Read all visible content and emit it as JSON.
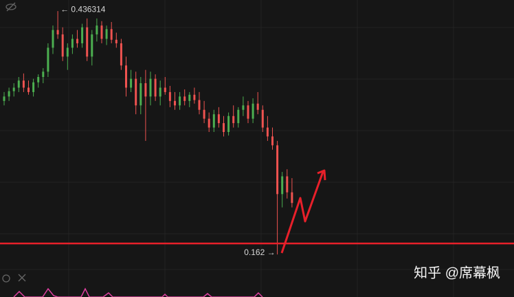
{
  "chart_data": {
    "type": "candlestick",
    "up_color": "#4caf50",
    "down_color": "#ef5350",
    "ylim": [
      0.114,
      0.4488
    ],
    "candles": [
      [
        0.335,
        0.345,
        0.33,
        0.34
      ],
      [
        0.34,
        0.35,
        0.335,
        0.346
      ],
      [
        0.346,
        0.355,
        0.34,
        0.35
      ],
      [
        0.35,
        0.362,
        0.345,
        0.358
      ],
      [
        0.358,
        0.366,
        0.345,
        0.35
      ],
      [
        0.35,
        0.358,
        0.342,
        0.345
      ],
      [
        0.345,
        0.36,
        0.34,
        0.356
      ],
      [
        0.356,
        0.365,
        0.35,
        0.362
      ],
      [
        0.362,
        0.372,
        0.355,
        0.368
      ],
      [
        0.368,
        0.4,
        0.362,
        0.395
      ],
      [
        0.395,
        0.42,
        0.388,
        0.415
      ],
      [
        0.415,
        0.436314,
        0.405,
        0.41
      ],
      [
        0.41,
        0.418,
        0.38,
        0.385
      ],
      [
        0.385,
        0.4,
        0.37,
        0.395
      ],
      [
        0.395,
        0.41,
        0.388,
        0.405
      ],
      [
        0.405,
        0.415,
        0.395,
        0.4
      ],
      [
        0.4,
        0.422,
        0.395,
        0.418
      ],
      [
        0.418,
        0.428,
        0.38,
        0.385
      ],
      [
        0.385,
        0.415,
        0.375,
        0.41
      ],
      [
        0.41,
        0.428,
        0.402,
        0.42
      ],
      [
        0.42,
        0.425,
        0.4,
        0.405
      ],
      [
        0.405,
        0.42,
        0.398,
        0.416
      ],
      [
        0.416,
        0.424,
        0.4,
        0.404
      ],
      [
        0.404,
        0.412,
        0.395,
        0.4
      ],
      [
        0.4,
        0.405,
        0.37,
        0.375
      ],
      [
        0.375,
        0.385,
        0.34,
        0.35
      ],
      [
        0.35,
        0.37,
        0.345,
        0.36
      ],
      [
        0.36,
        0.368,
        0.32,
        0.33
      ],
      [
        0.33,
        0.362,
        0.32,
        0.355
      ],
      [
        0.355,
        0.37,
        0.29,
        0.34
      ],
      [
        0.34,
        0.368,
        0.33,
        0.36
      ],
      [
        0.36,
        0.365,
        0.335,
        0.34
      ],
      [
        0.34,
        0.358,
        0.33,
        0.35
      ],
      [
        0.35,
        0.362,
        0.342,
        0.345
      ],
      [
        0.345,
        0.352,
        0.328,
        0.335
      ],
      [
        0.335,
        0.345,
        0.325,
        0.33
      ],
      [
        0.33,
        0.345,
        0.325,
        0.34
      ],
      [
        0.34,
        0.348,
        0.33,
        0.335
      ],
      [
        0.335,
        0.345,
        0.328,
        0.342
      ],
      [
        0.342,
        0.35,
        0.332,
        0.336
      ],
      [
        0.336,
        0.345,
        0.32,
        0.325
      ],
      [
        0.325,
        0.335,
        0.31,
        0.315
      ],
      [
        0.315,
        0.322,
        0.3,
        0.305
      ],
      [
        0.305,
        0.325,
        0.3,
        0.32
      ],
      [
        0.32,
        0.328,
        0.305,
        0.31
      ],
      [
        0.31,
        0.318,
        0.295,
        0.3
      ],
      [
        0.3,
        0.322,
        0.296,
        0.318
      ],
      [
        0.318,
        0.33,
        0.305,
        0.31
      ],
      [
        0.31,
        0.328,
        0.305,
        0.325
      ],
      [
        0.325,
        0.34,
        0.318,
        0.33
      ],
      [
        0.33,
        0.335,
        0.31,
        0.315
      ],
      [
        0.315,
        0.338,
        0.31,
        0.332
      ],
      [
        0.332,
        0.345,
        0.32,
        0.325
      ],
      [
        0.325,
        0.33,
        0.3,
        0.305
      ],
      [
        0.305,
        0.318,
        0.29,
        0.295
      ],
      [
        0.295,
        0.305,
        0.28,
        0.285
      ],
      [
        0.285,
        0.29,
        0.162,
        0.23
      ],
      [
        0.23,
        0.255,
        0.215,
        0.25
      ],
      [
        0.25,
        0.258,
        0.225,
        0.232
      ],
      [
        0.232,
        0.248,
        0.215,
        0.22
      ]
    ],
    "support_level": {
      "value": 0.1744,
      "color": "#e8202a"
    },
    "annotations": [
      {
        "label": "← 0.436314",
        "value": 0.436314
      },
      {
        "label": "0.162 →",
        "value": 0.162
      }
    ],
    "watermark": "知乎 @席幕枫"
  }
}
